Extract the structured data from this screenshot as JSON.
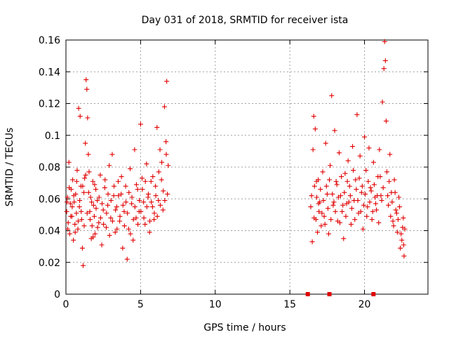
{
  "chart_data": {
    "type": "scatter",
    "title": "Day 031 of 2018, SRMTID for receiver ista",
    "xlabel": "GPS time / hours",
    "ylabel": "SRMTID / TECUs",
    "xlim": [
      0,
      24.25
    ],
    "ylim": [
      0,
      0.16
    ],
    "x_ticks": [
      0,
      5,
      10,
      15,
      20
    ],
    "x_tick_labels": [
      "0",
      "5",
      "10",
      "15",
      "20"
    ],
    "y_ticks": [
      0,
      0.02,
      0.04,
      0.06,
      0.08,
      0.1,
      0.12,
      0.14,
      0.16
    ],
    "y_tick_labels": [
      "0",
      "0.02",
      "0.04",
      "0.06",
      "0.08",
      "0.1",
      "0.12",
      "0.14",
      "0.16"
    ],
    "grid": true,
    "marker": "plus",
    "color": "#e00000",
    "series": [
      {
        "points": [
          [
            0.05,
            0.052
          ],
          [
            0.1,
            0.061
          ],
          [
            0.15,
            0.045
          ],
          [
            0.2,
            0.083
          ],
          [
            0.25,
            0.038
          ],
          [
            0.3,
            0.057
          ],
          [
            0.35,
            0.066
          ],
          [
            0.4,
            0.049
          ],
          [
            0.45,
            0.072
          ],
          [
            0.5,
            0.034
          ],
          [
            0.55,
            0.058
          ],
          [
            0.6,
            0.044
          ],
          [
            0.65,
            0.063
          ],
          [
            0.7,
            0.051
          ],
          [
            0.75,
            0.078
          ],
          [
            0.8,
            0.041
          ],
          [
            0.85,
            0.117
          ],
          [
            0.9,
            0.055
          ],
          [
            0.95,
            0.112
          ],
          [
            1.0,
            0.068
          ],
          [
            1.05,
            0.047
          ],
          [
            1.1,
            0.029
          ],
          [
            1.15,
            0.018
          ],
          [
            1.2,
            0.064
          ],
          [
            1.25,
            0.073
          ],
          [
            1.3,
            0.095
          ],
          [
            1.35,
            0.135
          ],
          [
            1.4,
            0.129
          ],
          [
            1.45,
            0.111
          ],
          [
            1.5,
            0.088
          ],
          [
            1.55,
            0.077
          ],
          [
            1.6,
            0.052
          ],
          [
            1.65,
            0.061
          ],
          [
            1.7,
            0.035
          ],
          [
            1.75,
            0.043
          ],
          [
            1.8,
            0.071
          ],
          [
            1.85,
            0.056
          ],
          [
            1.9,
            0.049
          ],
          [
            1.95,
            0.038
          ],
          [
            2.0,
            0.066
          ],
          [
            2.1,
            0.059
          ],
          [
            2.2,
            0.045
          ],
          [
            2.3,
            0.075
          ],
          [
            2.4,
            0.031
          ],
          [
            2.5,
            0.053
          ],
          [
            2.6,
            0.067
          ],
          [
            2.7,
            0.042
          ],
          [
            2.8,
            0.056
          ],
          [
            2.9,
            0.081
          ],
          [
            3.0,
            0.048
          ],
          [
            3.1,
            0.088
          ],
          [
            3.2,
            0.062
          ],
          [
            3.3,
            0.039
          ],
          [
            3.4,
            0.055
          ],
          [
            3.5,
            0.071
          ],
          [
            3.6,
            0.046
          ],
          [
            3.7,
            0.063
          ],
          [
            3.8,
            0.029
          ],
          [
            3.9,
            0.052
          ],
          [
            4.0,
            0.068
          ],
          [
            4.1,
            0.022
          ],
          [
            4.2,
            0.041
          ],
          [
            4.3,
            0.079
          ],
          [
            4.4,
            0.057
          ],
          [
            4.5,
            0.034
          ],
          [
            4.6,
            0.091
          ],
          [
            4.7,
            0.048
          ],
          [
            4.8,
            0.066
          ],
          [
            4.9,
            0.052
          ],
          [
            5.0,
            0.107
          ],
          [
            5.1,
            0.073
          ],
          [
            5.2,
            0.058
          ],
          [
            5.3,
            0.044
          ],
          [
            5.4,
            0.082
          ],
          [
            5.5,
            0.061
          ],
          [
            5.6,
            0.039
          ],
          [
            5.7,
            0.071
          ],
          [
            5.8,
            0.055
          ],
          [
            5.9,
            0.047
          ],
          [
            6.0,
            0.068
          ],
          [
            6.1,
            0.105
          ],
          [
            6.2,
            0.059
          ],
          [
            6.3,
            0.091
          ],
          [
            6.4,
            0.072
          ],
          [
            6.5,
            0.053
          ],
          [
            6.6,
            0.118
          ],
          [
            6.7,
            0.096
          ],
          [
            6.75,
            0.134
          ],
          [
            6.8,
            0.063
          ],
          [
            6.85,
            0.081
          ],
          [
            0.07,
            0.058
          ],
          [
            0.12,
            0.041
          ],
          [
            0.22,
            0.067
          ],
          [
            0.32,
            0.049
          ],
          [
            0.42,
            0.055
          ],
          [
            0.52,
            0.062
          ],
          [
            0.62,
            0.039
          ],
          [
            0.72,
            0.071
          ],
          [
            0.82,
            0.046
          ],
          [
            0.92,
            0.059
          ],
          [
            1.02,
            0.052
          ],
          [
            1.12,
            0.068
          ],
          [
            1.22,
            0.043
          ],
          [
            1.32,
            0.075
          ],
          [
            1.42,
            0.051
          ],
          [
            1.52,
            0.064
          ],
          [
            1.62,
            0.047
          ],
          [
            1.72,
            0.058
          ],
          [
            1.82,
            0.036
          ],
          [
            1.92,
            0.069
          ],
          [
            2.02,
            0.054
          ],
          [
            2.12,
            0.042
          ],
          [
            2.22,
            0.061
          ],
          [
            2.32,
            0.048
          ],
          [
            2.42,
            0.057
          ],
          [
            2.52,
            0.044
          ],
          [
            2.62,
            0.072
          ],
          [
            2.72,
            0.051
          ],
          [
            2.82,
            0.063
          ],
          [
            2.92,
            0.037
          ],
          [
            3.02,
            0.059
          ],
          [
            3.12,
            0.046
          ],
          [
            3.22,
            0.068
          ],
          [
            3.32,
            0.053
          ],
          [
            3.42,
            0.041
          ],
          [
            3.52,
            0.062
          ],
          [
            3.62,
            0.049
          ],
          [
            3.72,
            0.074
          ],
          [
            3.82,
            0.056
          ],
          [
            3.92,
            0.043
          ],
          [
            4.02,
            0.058
          ],
          [
            4.12,
            0.051
          ],
          [
            4.22,
            0.064
          ],
          [
            4.32,
            0.038
          ],
          [
            4.42,
            0.061
          ],
          [
            4.52,
            0.047
          ],
          [
            4.62,
            0.055
          ],
          [
            4.72,
            0.069
          ],
          [
            4.82,
            0.044
          ],
          [
            4.92,
            0.059
          ],
          [
            5.02,
            0.052
          ],
          [
            5.12,
            0.066
          ],
          [
            5.22,
            0.048
          ],
          [
            5.32,
            0.071
          ],
          [
            5.42,
            0.055
          ],
          [
            5.52,
            0.063
          ],
          [
            5.62,
            0.046
          ],
          [
            5.72,
            0.058
          ],
          [
            5.82,
            0.074
          ],
          [
            5.92,
            0.051
          ],
          [
            6.02,
            0.062
          ],
          [
            6.12,
            0.049
          ],
          [
            6.22,
            0.077
          ],
          [
            6.32,
            0.056
          ],
          [
            6.42,
            0.083
          ],
          [
            6.52,
            0.065
          ],
          [
            6.62,
            0.059
          ],
          [
            6.72,
            0.088
          ],
          [
            16.4,
            0.055
          ],
          [
            16.5,
            0.033
          ],
          [
            16.55,
            0.091
          ],
          [
            16.6,
            0.112
          ],
          [
            16.65,
            0.068
          ],
          [
            16.7,
            0.104
          ],
          [
            16.75,
            0.047
          ],
          [
            16.8,
            0.061
          ],
          [
            16.85,
            0.039
          ],
          [
            16.9,
            0.072
          ],
          [
            16.95,
            0.052
          ],
          [
            17.0,
            0.058
          ],
          [
            17.1,
            0.043
          ],
          [
            17.2,
            0.077
          ],
          [
            17.3,
            0.049
          ],
          [
            17.4,
            0.095
          ],
          [
            17.5,
            0.063
          ],
          [
            17.6,
            0.038
          ],
          [
            17.7,
            0.081
          ],
          [
            17.8,
            0.125
          ],
          [
            17.9,
            0.056
          ],
          [
            18.0,
            0.103
          ],
          [
            18.1,
            0.071
          ],
          [
            18.2,
            0.046
          ],
          [
            18.3,
            0.089
          ],
          [
            18.4,
            0.062
          ],
          [
            18.5,
            0.052
          ],
          [
            18.6,
            0.035
          ],
          [
            18.7,
            0.076
          ],
          [
            18.8,
            0.057
          ],
          [
            18.9,
            0.084
          ],
          [
            19.0,
            0.068
          ],
          [
            19.1,
            0.044
          ],
          [
            19.2,
            0.093
          ],
          [
            19.3,
            0.059
          ],
          [
            19.4,
            0.072
          ],
          [
            19.5,
            0.113
          ],
          [
            19.6,
            0.051
          ],
          [
            19.7,
            0.087
          ],
          [
            19.8,
            0.064
          ],
          [
            19.9,
            0.041
          ],
          [
            20.0,
            0.099
          ],
          [
            20.1,
            0.078
          ],
          [
            20.2,
            0.055
          ],
          [
            20.3,
            0.092
          ],
          [
            20.4,
            0.067
          ],
          [
            20.5,
            0.047
          ],
          [
            20.6,
            0.083
          ],
          [
            20.7,
            0.061
          ],
          [
            20.8,
            0.053
          ],
          [
            20.9,
            0.074
          ],
          [
            21.0,
            0.091
          ],
          [
            21.1,
            0.062
          ],
          [
            21.2,
            0.121
          ],
          [
            21.3,
            0.142
          ],
          [
            21.35,
            0.159
          ],
          [
            21.4,
            0.147
          ],
          [
            21.45,
            0.109
          ],
          [
            21.5,
            0.077
          ],
          [
            21.6,
            0.056
          ],
          [
            21.7,
            0.088
          ],
          [
            21.8,
            0.064
          ],
          [
            21.9,
            0.046
          ],
          [
            22.0,
            0.072
          ],
          [
            22.1,
            0.053
          ],
          [
            22.2,
            0.039
          ],
          [
            22.3,
            0.061
          ],
          [
            22.4,
            0.029
          ],
          [
            22.5,
            0.034
          ],
          [
            22.6,
            0.048
          ],
          [
            22.65,
            0.024
          ],
          [
            22.7,
            0.041
          ],
          [
            16.45,
            0.062
          ],
          [
            16.62,
            0.048
          ],
          [
            16.78,
            0.071
          ],
          [
            16.92,
            0.057
          ],
          [
            17.05,
            0.066
          ],
          [
            17.15,
            0.051
          ],
          [
            17.25,
            0.059
          ],
          [
            17.35,
            0.044
          ],
          [
            17.45,
            0.068
          ],
          [
            17.55,
            0.054
          ],
          [
            17.65,
            0.072
          ],
          [
            17.75,
            0.047
          ],
          [
            17.85,
            0.063
          ],
          [
            17.95,
            0.058
          ],
          [
            18.05,
            0.052
          ],
          [
            18.15,
            0.069
          ],
          [
            18.25,
            0.061
          ],
          [
            18.35,
            0.045
          ],
          [
            18.45,
            0.074
          ],
          [
            18.55,
            0.056
          ],
          [
            18.65,
            0.064
          ],
          [
            18.75,
            0.049
          ],
          [
            18.85,
            0.071
          ],
          [
            18.95,
            0.058
          ],
          [
            19.05,
            0.062
          ],
          [
            19.15,
            0.054
          ],
          [
            19.25,
            0.078
          ],
          [
            19.35,
            0.047
          ],
          [
            19.45,
            0.066
          ],
          [
            19.55,
            0.059
          ],
          [
            19.65,
            0.073
          ],
          [
            19.75,
            0.052
          ],
          [
            19.85,
            0.068
          ],
          [
            19.95,
            0.056
          ],
          [
            20.05,
            0.063
          ],
          [
            20.15,
            0.049
          ],
          [
            20.25,
            0.071
          ],
          [
            20.35,
            0.058
          ],
          [
            20.45,
            0.065
          ],
          [
            20.55,
            0.052
          ],
          [
            20.65,
            0.069
          ],
          [
            20.75,
            0.057
          ],
          [
            20.85,
            0.062
          ],
          [
            20.95,
            0.045
          ],
          [
            21.05,
            0.074
          ],
          [
            21.15,
            0.059
          ],
          [
            21.25,
            0.067
          ],
          [
            21.55,
            0.062
          ],
          [
            21.65,
            0.071
          ],
          [
            21.75,
            0.049
          ],
          [
            21.85,
            0.058
          ],
          [
            21.95,
            0.043
          ],
          [
            22.05,
            0.064
          ],
          [
            22.15,
            0.051
          ],
          [
            22.25,
            0.047
          ],
          [
            22.35,
            0.055
          ],
          [
            22.45,
            0.038
          ],
          [
            22.55,
            0.042
          ],
          [
            22.62,
            0.031
          ]
        ]
      },
      {
        "marker": "square",
        "points": [
          [
            16.2,
            0.0
          ],
          [
            17.65,
            0.0
          ],
          [
            20.6,
            0.0
          ]
        ]
      }
    ]
  }
}
